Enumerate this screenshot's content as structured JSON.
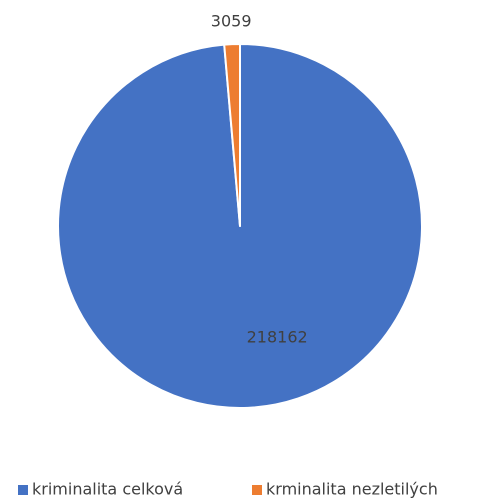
{
  "chart_data": {
    "type": "pie",
    "categories": [
      "kriminalita celková",
      "krminalita nezletilých"
    ],
    "values": [
      218162,
      3059
    ],
    "colors": [
      "#4472c4",
      "#ed7d31"
    ],
    "legend": "bottom"
  }
}
